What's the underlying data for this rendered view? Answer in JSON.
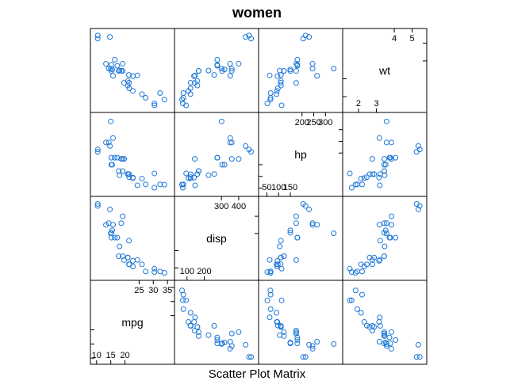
{
  "chart_data": {
    "type": "scatter",
    "title": "women",
    "xlabel": "Scatter Plot Matrix",
    "ylabel": "",
    "point_color": "#1f78d7",
    "variables": [
      {
        "name": "mpg",
        "range": [
          9.5,
          35.8
        ],
        "ticks_axis_a": [
          "10",
          "15",
          "20"
        ],
        "ticks_axis_b": [
          "25",
          "30",
          "35"
        ],
        "tick_values_axis_a": [
          10,
          15,
          20
        ],
        "tick_values_axis_b": [
          25,
          30,
          35
        ]
      },
      {
        "name": "disp",
        "range": [
          55,
          488
        ],
        "ticks_axis_a": [
          "100",
          "200"
        ],
        "ticks_axis_b": [
          "300",
          "400"
        ],
        "tick_values_axis_a": [
          100,
          200
        ],
        "tick_values_axis_b": [
          300,
          400
        ]
      },
      {
        "name": "hp",
        "range": [
          35,
          353
        ],
        "ticks_axis_a": [
          "50",
          "100",
          "150"
        ],
        "ticks_axis_b": [
          "200",
          "250",
          "300"
        ],
        "tick_values_axis_a": [
          50,
          100,
          150
        ],
        "tick_values_axis_b": [
          200,
          250,
          300
        ]
      },
      {
        "name": "wt",
        "range": [
          1.38,
          5.55
        ],
        "ticks_axis_a": [
          "2",
          "3"
        ],
        "ticks_axis_b": [
          "4",
          "5"
        ],
        "tick_values_axis_a": [
          2,
          3
        ],
        "tick_values_axis_b": [
          4,
          5
        ]
      }
    ],
    "observations": [
      {
        "mpg": 21.0,
        "disp": 160.0,
        "hp": 110,
        "wt": 2.62
      },
      {
        "mpg": 21.0,
        "disp": 160.0,
        "hp": 110,
        "wt": 2.875
      },
      {
        "mpg": 22.8,
        "disp": 108.0,
        "hp": 93,
        "wt": 2.32
      },
      {
        "mpg": 21.4,
        "disp": 258.0,
        "hp": 110,
        "wt": 3.215
      },
      {
        "mpg": 18.7,
        "disp": 360.0,
        "hp": 175,
        "wt": 3.44
      },
      {
        "mpg": 18.1,
        "disp": 225.0,
        "hp": 105,
        "wt": 3.46
      },
      {
        "mpg": 14.3,
        "disp": 360.0,
        "hp": 245,
        "wt": 3.57
      },
      {
        "mpg": 24.4,
        "disp": 146.7,
        "hp": 62,
        "wt": 3.19
      },
      {
        "mpg": 22.8,
        "disp": 140.8,
        "hp": 95,
        "wt": 3.15
      },
      {
        "mpg": 19.2,
        "disp": 167.6,
        "hp": 123,
        "wt": 3.44
      },
      {
        "mpg": 17.8,
        "disp": 167.6,
        "hp": 123,
        "wt": 3.44
      },
      {
        "mpg": 16.4,
        "disp": 275.8,
        "hp": 180,
        "wt": 4.07
      },
      {
        "mpg": 17.3,
        "disp": 275.8,
        "hp": 180,
        "wt": 3.73
      },
      {
        "mpg": 15.2,
        "disp": 275.8,
        "hp": 180,
        "wt": 3.78
      },
      {
        "mpg": 10.4,
        "disp": 472.0,
        "hp": 205,
        "wt": 5.25
      },
      {
        "mpg": 10.4,
        "disp": 460.0,
        "hp": 215,
        "wt": 5.424
      },
      {
        "mpg": 14.7,
        "disp": 440.0,
        "hp": 230,
        "wt": 5.345
      },
      {
        "mpg": 32.4,
        "disp": 78.7,
        "hp": 66,
        "wt": 2.2
      },
      {
        "mpg": 30.4,
        "disp": 75.7,
        "hp": 52,
        "wt": 1.615
      },
      {
        "mpg": 33.9,
        "disp": 71.1,
        "hp": 65,
        "wt": 1.835
      },
      {
        "mpg": 21.5,
        "disp": 120.1,
        "hp": 97,
        "wt": 2.465
      },
      {
        "mpg": 15.5,
        "disp": 318.0,
        "hp": 150,
        "wt": 3.52
      },
      {
        "mpg": 15.2,
        "disp": 304.0,
        "hp": 150,
        "wt": 3.435
      },
      {
        "mpg": 13.3,
        "disp": 350.0,
        "hp": 245,
        "wt": 3.84
      },
      {
        "mpg": 19.2,
        "disp": 400.0,
        "hp": 175,
        "wt": 3.845
      },
      {
        "mpg": 27.3,
        "disp": 79.0,
        "hp": 66,
        "wt": 1.935
      },
      {
        "mpg": 26.0,
        "disp": 120.3,
        "hp": 91,
        "wt": 2.14
      },
      {
        "mpg": 30.4,
        "disp": 95.1,
        "hp": 113,
        "wt": 1.513
      },
      {
        "mpg": 15.8,
        "disp": 351.0,
        "hp": 264,
        "wt": 3.17
      },
      {
        "mpg": 19.7,
        "disp": 145.0,
        "hp": 175,
        "wt": 2.77
      },
      {
        "mpg": 15.0,
        "disp": 301.0,
        "hp": 335,
        "wt": 3.57
      },
      {
        "mpg": 21.4,
        "disp": 121.0,
        "hp": 109,
        "wt": 2.78
      }
    ],
    "grid": false,
    "legend": "none"
  }
}
